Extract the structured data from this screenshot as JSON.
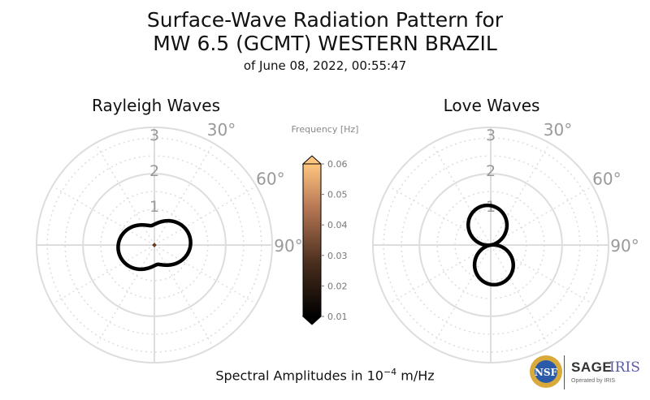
{
  "title": {
    "line1": "Surface-Wave Radiation Pattern for",
    "line2": "MW 6.5 (GCMT) WESTERN BRAZIL",
    "subtitle": "of June 08, 2022, 00:55:47"
  },
  "footer": {
    "prefix": "Spectral Amplitudes in 10",
    "exponent": "−4",
    "suffix": " m/Hz"
  },
  "logo": {
    "nsf": "NSF",
    "sage": "SAGE",
    "iris": "IRIS",
    "operated": "Operated by IRIS"
  },
  "colorbar": {
    "title": "Frequency [Hz]",
    "ticks": [
      "0.06",
      "0.05",
      "0.04",
      "0.03",
      "0.02",
      "0.01"
    ],
    "range": [
      0.01,
      0.06
    ],
    "colormap": "copper"
  },
  "chart_data": [
    {
      "type": "polar",
      "title": "Rayleigh Waves",
      "radial_ticks": [
        "1",
        "2",
        "3"
      ],
      "rmax": 3.3,
      "angle_labels": [
        "30°",
        "60°",
        "90°"
      ],
      "angle_values": [
        30,
        60,
        90
      ],
      "pattern": {
        "kind": "rayleigh",
        "lobe_azimuth_deg": 81,
        "a": 0.55,
        "b": 0.47,
        "sharp": 1.5
      },
      "center_marker_color": "#6b3a1f"
    },
    {
      "type": "polar",
      "title": "Love Waves",
      "radial_ticks": [
        "1",
        "2",
        "3"
      ],
      "rmax": 3.3,
      "angle_labels": [
        "30°",
        "60°",
        "90°"
      ],
      "angle_values": [
        30,
        60,
        90
      ],
      "pattern": {
        "kind": "love",
        "lobe_azimuth_deg": 171,
        "a": 1.12,
        "sharp": 1.1
      }
    }
  ]
}
